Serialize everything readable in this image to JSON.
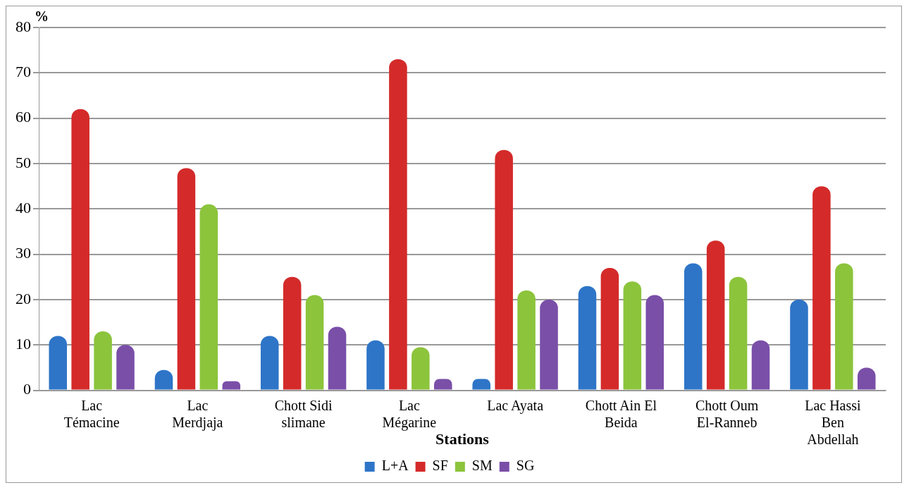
{
  "chart_data": {
    "type": "bar",
    "xlabel": "Stations",
    "ylabel": "%",
    "categories": [
      "Lac Témacine",
      "Lac Merdjaja",
      "Chott Sidi slimane",
      "Lac Mégarine",
      "Lac Ayata",
      "Chott Ain El Beida",
      "Chott Oum El-Ranneb",
      "Lac Hassi Ben Abdellah"
    ],
    "series": [
      {
        "name": "L+A",
        "color": "#2e75c8",
        "values": [
          12,
          4.5,
          12,
          11,
          2.5,
          23,
          28,
          20
        ]
      },
      {
        "name": "SF",
        "color": "#d42a2a",
        "values": [
          62,
          49,
          25,
          73,
          53,
          27,
          33,
          45
        ]
      },
      {
        "name": "SM",
        "color": "#8cc43c",
        "values": [
          13,
          41,
          21,
          9.5,
          22,
          24,
          25,
          28
        ]
      },
      {
        "name": "SG",
        "color": "#7a4fa8",
        "values": [
          10,
          2,
          14,
          2.5,
          20,
          21,
          11,
          5
        ]
      }
    ],
    "ylim": [
      0,
      80
    ],
    "yticks": [
      0,
      10,
      20,
      30,
      40,
      50,
      60,
      70,
      80
    ],
    "grid": "y",
    "legend": "bottom"
  }
}
